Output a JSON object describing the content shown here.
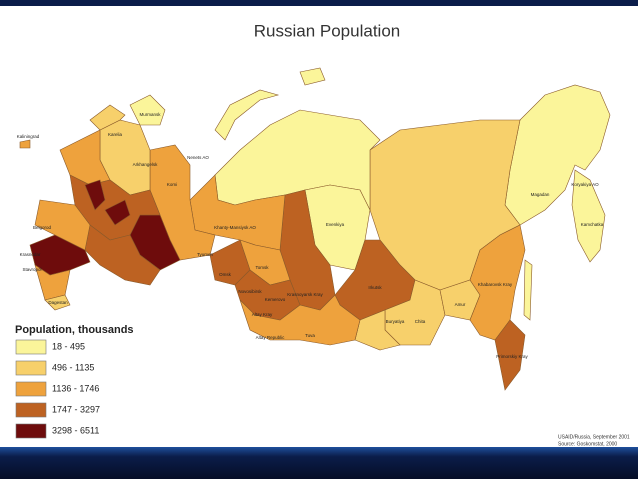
{
  "title": "Russian Population",
  "legend": {
    "title": "Population, thousands",
    "items": [
      {
        "label": "18 - 495",
        "color": "#fbf59a"
      },
      {
        "label": "496 - 1135",
        "color": "#f7d06b"
      },
      {
        "label": "1136 - 1746",
        "color": "#eea23d"
      },
      {
        "label": "1747 - 3297",
        "color": "#bd6222"
      },
      {
        "label": "3298 - 6511",
        "color": "#6e0c0c"
      }
    ]
  },
  "source": [
    "USAID/Russia, September 2001",
    "Source: Goskomstat, 2000"
  ],
  "regions": [
    "Murmansk",
    "Karelia",
    "Kaliningrad",
    "Arkhangelsk",
    "Komi",
    "Nenets AO",
    "Khanty-Mansiysk AO",
    "Evenkiya",
    "Magadan",
    "Koryakiya AO",
    "Kamchatka",
    "Tyumen",
    "Tomsk",
    "Omsk",
    "Novosibirsk",
    "Kemerovo",
    "Krasnoyarsk Kray",
    "Irkutsk",
    "Altay Kray",
    "Altay Republic",
    "Tuva",
    "Buryatiya",
    "Chita",
    "Amur",
    "Khabarovsk Kray",
    "Primorskiy Kray",
    "Belgorod",
    "Krasnodar",
    "Stavropol",
    "Dagestan"
  ]
}
